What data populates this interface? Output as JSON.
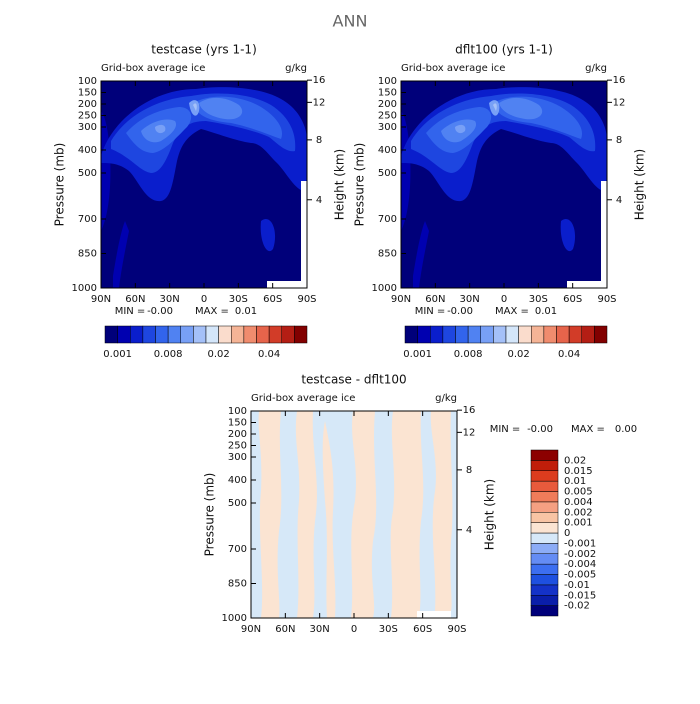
{
  "title": "ANN",
  "chart_data": [
    {
      "type": "contour",
      "title": "testcase (yrs 1-1)",
      "subtitle": "Grid-box average ice",
      "units": "g/kg",
      "y_label": "Pressure (mb)",
      "y2_label": "Height (km)",
      "xlim": [
        90,
        -90
      ],
      "xticks": [
        {
          "value": 90,
          "label": "90N"
        },
        {
          "value": 60,
          "label": "60N"
        },
        {
          "value": 30,
          "label": "30N"
        },
        0,
        {
          "value": -30,
          "label": "30S"
        },
        {
          "value": -60,
          "label": "60S"
        },
        {
          "value": -90,
          "label": "90S"
        }
      ],
      "ylim": [
        1000,
        100
      ],
      "yticks": [
        100,
        150,
        200,
        250,
        300,
        400,
        500,
        700,
        850,
        1000
      ],
      "y2ticks": [
        4,
        8,
        12,
        16
      ],
      "min_label": "MIN =",
      "min": {
        "value": 0,
        "label": "-0.00"
      },
      "max_label": "MAX =",
      "max": 0.01,
      "colorbar": {
        "colors": [
          "#00007a",
          "#0000b0",
          "#0a1ecc",
          "#1e46e0",
          "#3264ec",
          "#5082f2",
          "#78a0f6",
          "#a4c0f8",
          "#d4e6fa",
          "#fadccc",
          "#f5b496",
          "#f08c6e",
          "#e6644b",
          "#d23c28",
          "#b41e14",
          "#820000"
        ],
        "levels": [
          0.001,
          null,
          null,
          null,
          0.008,
          null,
          null,
          null,
          0.02,
          null,
          null,
          null,
          0.04,
          null,
          null
        ]
      }
    },
    {
      "type": "contour",
      "title": "dflt100 (yrs 1-1)",
      "subtitle": "Grid-box average ice",
      "units": "g/kg",
      "y_label": "Pressure (mb)",
      "y2_label": "Height (km)",
      "xlim": [
        90,
        -90
      ],
      "xticks": [
        {
          "value": 90,
          "label": "90N"
        },
        {
          "value": 60,
          "label": "60N"
        },
        {
          "value": 30,
          "label": "30N"
        },
        0,
        {
          "value": -30,
          "label": "30S"
        },
        {
          "value": -60,
          "label": "60S"
        },
        {
          "value": -90,
          "label": "90S"
        }
      ],
      "ylim": [
        1000,
        100
      ],
      "yticks": [
        100,
        150,
        200,
        250,
        300,
        400,
        500,
        700,
        850,
        1000
      ],
      "y2ticks": [
        4,
        8,
        12,
        16
      ],
      "min_label": "MIN =",
      "min": {
        "value": 0,
        "label": "-0.00"
      },
      "max_label": "MAX =",
      "max": 0.01,
      "colorbar": {
        "colors": [
          "#00007a",
          "#0000b0",
          "#0a1ecc",
          "#1e46e0",
          "#3264ec",
          "#5082f2",
          "#78a0f6",
          "#a4c0f8",
          "#d4e6fa",
          "#fadccc",
          "#f5b496",
          "#f08c6e",
          "#e6644b",
          "#d23c28",
          "#b41e14",
          "#820000"
        ],
        "levels": [
          0.001,
          null,
          null,
          null,
          0.008,
          null,
          null,
          null,
          0.02,
          null,
          null,
          null,
          0.04,
          null,
          null
        ]
      }
    },
    {
      "type": "contour",
      "title": "testcase - dflt100",
      "subtitle": "Grid-box average ice",
      "units": "g/kg",
      "y_label": "Pressure (mb)",
      "y2_label": "Height (km)",
      "xlim": [
        90,
        -90
      ],
      "xticks": [
        {
          "value": 90,
          "label": "90N"
        },
        {
          "value": 60,
          "label": "60N"
        },
        {
          "value": 30,
          "label": "30N"
        },
        0,
        {
          "value": -30,
          "label": "30S"
        },
        {
          "value": -60,
          "label": "60S"
        },
        {
          "value": -90,
          "label": "90S"
        }
      ],
      "ylim": [
        1000,
        100
      ],
      "yticks": [
        100,
        150,
        200,
        250,
        300,
        400,
        500,
        700,
        850,
        1000
      ],
      "y2ticks": [
        4,
        8,
        12,
        16
      ],
      "min_label": "MIN =",
      "min": {
        "value": 0,
        "label": "-0.00"
      },
      "max_label": "MAX =",
      "max": {
        "value": 0,
        "label": "0.00"
      },
      "colorbar": {
        "colors": [
          "#00007a",
          "#0a1eaa",
          "#1432c8",
          "#1e50e0",
          "#3c6ef0",
          "#648cf4",
          "#8cacf6",
          "#d6e8f8",
          "#fbe4d2",
          "#f8c4a4",
          "#f5a082",
          "#f07c5a",
          "#e85a3c",
          "#dc3c1e",
          "#c01e0a",
          "#8c0000"
        ],
        "levels": [
          -0.02,
          -0.015,
          -0.01,
          -0.005,
          -0.004,
          -0.002,
          -0.001,
          0,
          0.001,
          0.002,
          0.004,
          0.005,
          0.01,
          0.015,
          0.02
        ]
      }
    }
  ]
}
